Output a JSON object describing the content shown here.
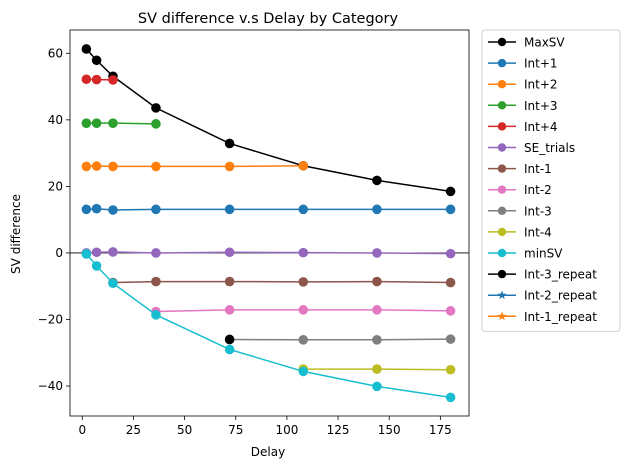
{
  "chart_data": {
    "type": "line",
    "title": "SV difference v.s Delay by Category",
    "xlabel": "Delay",
    "ylabel": "SV difference",
    "xlim": [
      -6,
      189
    ],
    "ylim": [
      -49,
      67
    ],
    "xticks": [
      0,
      25,
      50,
      75,
      100,
      125,
      150,
      175
    ],
    "yticks": [
      -40,
      -20,
      0,
      20,
      40,
      60
    ],
    "zero_line": true,
    "grid": false,
    "legend_position": "outside-right",
    "series": [
      {
        "name": "MaxSV",
        "color": "#000000",
        "marker": "circle",
        "x": [
          2,
          7,
          15,
          36,
          72,
          108,
          144,
          180
        ],
        "y": [
          61.3,
          57.9,
          53.1,
          43.6,
          32.9,
          26.2,
          21.8,
          18.5
        ]
      },
      {
        "name": "Int+1",
        "color": "#1f77b4",
        "marker": "circle",
        "x": [
          2,
          7,
          15,
          36,
          72,
          108,
          144,
          180
        ],
        "y": [
          13.1,
          13.3,
          12.9,
          13.1,
          13.1,
          13.1,
          13.1,
          13.1
        ]
      },
      {
        "name": "Int+2",
        "color": "#ff7f0e",
        "marker": "circle",
        "x": [
          2,
          7,
          15,
          36,
          72,
          108
        ],
        "y": [
          26.0,
          26.1,
          26.0,
          26.0,
          26.0,
          26.2
        ]
      },
      {
        "name": "Int+3",
        "color": "#2ca02c",
        "marker": "circle",
        "x": [
          2,
          7,
          15,
          36
        ],
        "y": [
          39.0,
          39.0,
          39.0,
          38.8
        ]
      },
      {
        "name": "Int+4",
        "color": "#d62728",
        "marker": "circle",
        "x": [
          2,
          7,
          15
        ],
        "y": [
          52.2,
          52.1,
          52.0
        ]
      },
      {
        "name": "SE_trials",
        "color": "#9467bd",
        "marker": "circle",
        "x": [
          2,
          7,
          15,
          36,
          72,
          108,
          144,
          180
        ],
        "y": [
          0.0,
          0.2,
          0.3,
          0.0,
          0.2,
          0.1,
          0.0,
          -0.2
        ]
      },
      {
        "name": "Int-1",
        "color": "#8c564b",
        "marker": "circle",
        "x": [
          15,
          36,
          72,
          108,
          144,
          180
        ],
        "y": [
          -8.9,
          -8.6,
          -8.6,
          -8.7,
          -8.6,
          -8.9
        ]
      },
      {
        "name": "Int-2",
        "color": "#e377c2",
        "marker": "circle",
        "x": [
          36,
          72,
          108,
          144,
          180
        ],
        "y": [
          -17.6,
          -17.1,
          -17.1,
          -17.1,
          -17.4
        ]
      },
      {
        "name": "Int-3",
        "color": "#7f7f7f",
        "marker": "circle",
        "x": [
          72,
          108,
          144,
          180
        ],
        "y": [
          -26.0,
          -26.1,
          -26.1,
          -25.9
        ]
      },
      {
        "name": "Int-4",
        "color": "#bcbd22",
        "marker": "circle",
        "x": [
          108,
          144,
          180
        ],
        "y": [
          -34.9,
          -34.9,
          -35.1
        ]
      },
      {
        "name": "minSV",
        "color": "#17becf",
        "marker": "circle",
        "x": [
          2,
          7,
          15,
          36,
          72,
          108,
          144,
          180
        ],
        "y": [
          -0.3,
          -3.9,
          -9.1,
          -18.6,
          -29.0,
          -35.6,
          -40.1,
          -43.4
        ]
      },
      {
        "name": "Int-3_repeat",
        "color": "#000000",
        "marker": "circle",
        "x": [
          72
        ],
        "y": [
          -26.0
        ]
      },
      {
        "name": "Int-2_repeat",
        "color": "#1f77b4",
        "marker": "star",
        "x": [],
        "y": []
      },
      {
        "name": "Int-1_repeat",
        "color": "#ff7f0e",
        "marker": "star",
        "x": [],
        "y": []
      }
    ]
  }
}
